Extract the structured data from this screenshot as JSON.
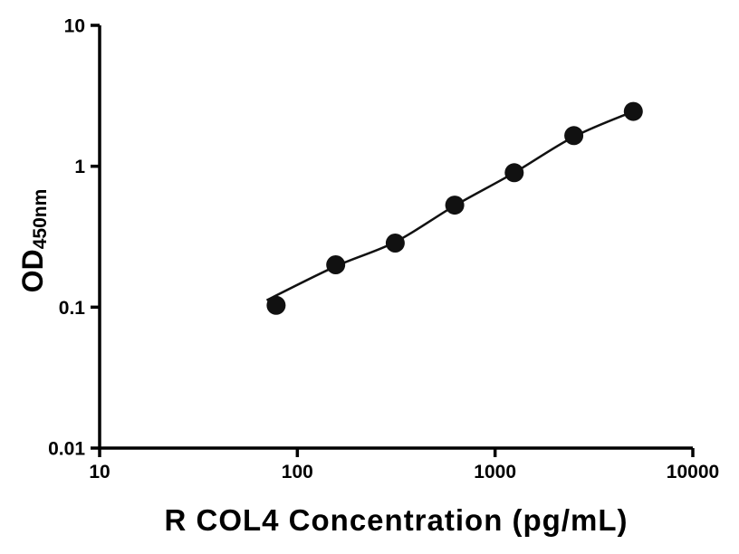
{
  "chart_data": {
    "type": "scatter",
    "title": "",
    "xlabel": "R COL4 Concentration (pg/mL)",
    "ylabel_main": "OD",
    "ylabel_sub": "450nm",
    "xscale": "log",
    "yscale": "log",
    "xlim": [
      10,
      10000
    ],
    "ylim": [
      0.01,
      10
    ],
    "x_ticks": [
      10,
      100,
      1000,
      10000
    ],
    "x_tick_labels": [
      "10",
      "100",
      "1000",
      "10000"
    ],
    "y_ticks": [
      10,
      1,
      0.1,
      0.01
    ],
    "y_tick_labels": [
      "10",
      "1",
      "0.1",
      "0.01"
    ],
    "grid": false,
    "legend": null,
    "points": {
      "x": [
        78.125,
        156.25,
        312.5,
        625,
        1250,
        2500,
        5000
      ],
      "y": [
        0.103,
        0.2,
        0.285,
        0.53,
        0.9,
        1.65,
        2.45
      ]
    },
    "fit_curve": {
      "x": [
        70,
        156.25,
        312.5,
        625,
        1250,
        2500,
        5000
      ],
      "y": [
        0.112,
        0.195,
        0.29,
        0.525,
        0.9,
        1.62,
        2.45
      ]
    },
    "colors": {
      "points": "#111111",
      "curve": "#111111",
      "axis": "#000000",
      "background": "#ffffff"
    }
  }
}
